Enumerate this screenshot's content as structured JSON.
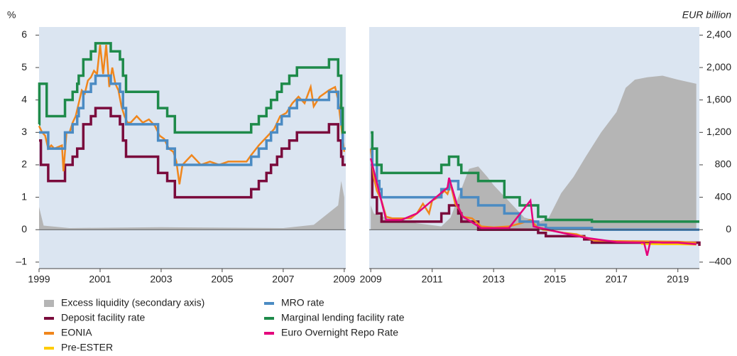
{
  "chart_data": {
    "type": "line",
    "ylabel": "%",
    "y2label": "EUR billion",
    "ylim": [
      -1.2,
      6.25
    ],
    "yticks": [
      {
        "value": -1,
        "label": "–1"
      },
      0,
      1,
      2,
      3,
      4,
      5,
      6
    ],
    "y2lim": [
      -480,
      2500
    ],
    "y2ticks": [
      {
        "value": -400,
        "label": "–400"
      },
      0,
      400,
      800,
      {
        "value": 1200,
        "label": "1,200"
      },
      {
        "value": 1600,
        "label": "1,600"
      },
      {
        "value": 2000,
        "label": "2,000"
      },
      {
        "value": 2400,
        "label": "2,400"
      }
    ],
    "panels": [
      {
        "xlim": [
          1999,
          2009.05
        ],
        "xticks": [
          1999,
          2001,
          2003,
          2005,
          2007,
          2009
        ]
      },
      {
        "xlim": [
          2008.95,
          2019.7
        ],
        "xticks": [
          2009,
          2011,
          2013,
          2015,
          2017,
          2019
        ]
      }
    ],
    "series": [
      {
        "name": "Excess liquidity (secondary axis)",
        "color": "#b5b5b5",
        "axis": "y2",
        "style": "area",
        "data": [
          {
            "x": [
              1999,
              1999.15,
              2000,
              2003,
              2007,
              2008,
              2008.8,
              2008.9,
              2009.0
            ],
            "values": [
              280,
              50,
              20,
              30,
              20,
              60,
              300,
              600,
              400
            ]
          },
          {
            "x": [
              2009,
              2009.1,
              2009.5,
              2010,
              2010.5,
              2010.9,
              2011.3,
              2011.6,
              2011.9,
              2012.2,
              2012.5,
              2012.8,
              2013.0,
              2013.5,
              2014.0,
              2014.5,
              2014.8,
              2015.2,
              2015.6,
              2016.0,
              2016.5,
              2017.0,
              2017.3,
              2017.6,
              2018.0,
              2018.5,
              2019.0,
              2019.6
            ],
            "values": [
              300,
              200,
              150,
              130,
              80,
              60,
              40,
              150,
              450,
              750,
              780,
              650,
              550,
              350,
              150,
              100,
              150,
              450,
              650,
              900,
              1200,
              1450,
              1750,
              1850,
              1880,
              1900,
              1850,
              1800
            ]
          }
        ]
      },
      {
        "name": "Deposit facility rate",
        "color": "#7a0b3c",
        "style": "steps",
        "data": [
          {
            "x": [
              1999,
              1999.06,
              1999.3,
              1999.85,
              2000.1,
              2000.25,
              2000.45,
              2000.7,
              2000.85,
              2001.35,
              2001.65,
              2001.75,
              2001.85,
              2002.9,
              2003.2,
              2003.45,
              2005.95,
              2006.2,
              2006.45,
              2006.6,
              2006.8,
              2006.95,
              2007.2,
              2007.45,
              2008.5,
              2008.8,
              2008.9,
              2008.95
            ],
            "values": [
              2.75,
              2.0,
              1.5,
              2.0,
              2.25,
              2.5,
              3.25,
              3.5,
              3.75,
              3.5,
              3.25,
              2.75,
              2.25,
              1.75,
              1.5,
              1.0,
              1.25,
              1.5,
              1.75,
              2.0,
              2.25,
              2.5,
              2.75,
              3.0,
              3.25,
              2.75,
              2.25,
              2.0
            ]
          },
          {
            "x": [
              2009,
              2009.05,
              2009.2,
              2009.35,
              2011.3,
              2011.55,
              2011.85,
              2011.95,
              2012.5,
              2014.45,
              2014.7,
              2015.95,
              2016.2,
              2019.7
            ],
            "values": [
              2.0,
              1.0,
              0.5,
              0.25,
              0.5,
              0.75,
              0.5,
              0.25,
              0,
              -0.1,
              -0.2,
              -0.3,
              -0.4,
              -0.5
            ]
          }
        ]
      },
      {
        "name": "EONIA",
        "color": "#f0861c",
        "style": "line",
        "data": [
          {
            "x": [
              1999,
              1999.1,
              1999.2,
              1999.3,
              1999.4,
              1999.5,
              1999.75,
              1999.8,
              1999.9,
              2000.0,
              2000.1,
              2000.2,
              2000.3,
              2000.4,
              2000.5,
              2000.6,
              2000.7,
              2000.8,
              2000.9,
              2001.0,
              2001.1,
              2001.2,
              2001.3,
              2001.4,
              2001.5,
              2001.6,
              2001.7,
              2001.8,
              2001.9,
              2002.0,
              2002.2,
              2002.4,
              2002.6,
              2002.8,
              2002.95,
              2003.1,
              2003.25,
              2003.4,
              2003.5,
              2003.6,
              2003.7,
              2004.0,
              2004.3,
              2004.6,
              2004.9,
              2005.2,
              2005.5,
              2005.8,
              2005.95,
              2006.2,
              2006.5,
              2006.7,
              2006.9,
              2007.1,
              2007.3,
              2007.5,
              2007.7,
              2007.9,
              2008.0,
              2008.2,
              2008.5,
              2008.7,
              2008.8,
              2008.9,
              2009.0
            ],
            "values": [
              3.2,
              3.0,
              2.9,
              2.5,
              2.6,
              2.5,
              2.6,
              1.8,
              3.0,
              3.0,
              3.3,
              3.5,
              3.9,
              4.3,
              4.2,
              4.6,
              4.7,
              4.9,
              4.8,
              5.7,
              4.8,
              5.7,
              4.4,
              5.0,
              4.5,
              4.3,
              3.8,
              3.5,
              3.3,
              3.3,
              3.5,
              3.3,
              3.4,
              3.2,
              2.9,
              2.8,
              2.5,
              2.4,
              2.1,
              1.4,
              2.0,
              2.3,
              2.0,
              2.1,
              2.0,
              2.1,
              2.1,
              2.1,
              2.3,
              2.6,
              2.9,
              3.1,
              3.5,
              3.6,
              3.9,
              4.1,
              3.9,
              4.4,
              3.8,
              4.1,
              4.3,
              4.4,
              4.0,
              3.2,
              2.4
            ]
          },
          {
            "x": [
              2009.0,
              2009.1,
              2009.2,
              2009.35,
              2009.5,
              2009.7,
              2010.0,
              2010.3,
              2010.5,
              2010.7,
              2010.9,
              2011.0,
              2011.2,
              2011.4,
              2011.5,
              2011.6,
              2011.75,
              2011.9,
              2012.0,
              2012.3,
              2012.6,
              2013.0,
              2013.5,
              2013.9,
              2014.2,
              2014.4,
              2014.6,
              2014.9,
              2015.3,
              2015.7,
              2016.0,
              2016.3,
              2017.0,
              2018.0,
              2019.0,
              2019.6
            ],
            "values": [
              2.5,
              1.6,
              1.2,
              0.9,
              0.4,
              0.35,
              0.35,
              0.35,
              0.5,
              0.8,
              0.5,
              0.9,
              1.0,
              1.2,
              1.1,
              1.4,
              0.8,
              0.6,
              0.4,
              0.35,
              0.1,
              0.07,
              0.1,
              0.2,
              0.3,
              0.1,
              0.0,
              -0.03,
              -0.1,
              -0.14,
              -0.24,
              -0.34,
              -0.35,
              -0.36,
              -0.37,
              -0.4
            ]
          }
        ]
      },
      {
        "name": "Pre-ESTER",
        "color": "#ffcc00",
        "style": "line",
        "data": [
          {
            "x": [],
            "values": []
          },
          {
            "x": [
              2017.8,
              2018.5,
              2019.0,
              2019.6
            ],
            "values": [
              -0.44,
              -0.45,
              -0.45,
              -0.46
            ]
          }
        ]
      },
      {
        "name": "MRO rate",
        "color": "#4b8bc3",
        "style": "steps",
        "data": [
          {
            "x": [
              1999,
              1999.3,
              1999.85,
              2000.1,
              2000.25,
              2000.3,
              2000.45,
              2000.7,
              2000.85,
              2001.35,
              2001.65,
              2001.75,
              2001.85,
              2002.9,
              2003.2,
              2003.45,
              2005.95,
              2006.2,
              2006.45,
              2006.6,
              2006.8,
              2006.95,
              2007.2,
              2007.45,
              2008.5,
              2008.8,
              2008.9,
              2008.95
            ],
            "values": [
              3.0,
              2.5,
              3.0,
              3.25,
              3.5,
              3.75,
              4.25,
              4.5,
              4.75,
              4.5,
              4.25,
              3.75,
              3.25,
              2.75,
              2.5,
              2.0,
              2.25,
              2.5,
              2.75,
              3.0,
              3.25,
              3.5,
              3.75,
              4.0,
              4.25,
              3.75,
              3.25,
              2.5
            ]
          },
          {
            "x": [
              2009,
              2009.05,
              2009.2,
              2009.28,
              2009.35,
              2011.3,
              2011.55,
              2011.85,
              2011.95,
              2012.5,
              2013.35,
              2013.85,
              2014.45,
              2014.7,
              2016.2
            ],
            "values": [
              2.5,
              2.0,
              1.5,
              1.25,
              1.0,
              1.25,
              1.5,
              1.25,
              1.0,
              0.75,
              0.5,
              0.25,
              0.15,
              0.05,
              0
            ]
          }
        ]
      },
      {
        "name": "Marginal lending facility rate",
        "color": "#1e8a4a",
        "style": "steps",
        "data": [
          {
            "x": [
              1999,
              1999.01,
              1999.06,
              1999.25,
              1999.85,
              2000.1,
              2000.25,
              2000.3,
              2000.45,
              2000.7,
              2000.85,
              2001.35,
              2001.65,
              2001.75,
              2001.85,
              2002.9,
              2003.2,
              2003.45,
              2005.95,
              2006.2,
              2006.45,
              2006.6,
              2006.8,
              2006.95,
              2007.2,
              2007.45,
              2008.5,
              2008.8,
              2008.9,
              2008.95
            ],
            "values": [
              3.25,
              4.5,
              4.5,
              3.5,
              4.0,
              4.25,
              4.5,
              4.75,
              5.25,
              5.5,
              5.75,
              5.5,
              5.25,
              4.75,
              4.25,
              3.75,
              3.5,
              3.0,
              3.25,
              3.5,
              3.75,
              4.0,
              4.25,
              4.5,
              4.75,
              5.0,
              5.25,
              4.75,
              3.75,
              3.0
            ]
          },
          {
            "x": [
              2009,
              2009.05,
              2009.2,
              2009.35,
              2011.3,
              2011.55,
              2011.85,
              2011.95,
              2012.5,
              2013.35,
              2013.85,
              2014.45,
              2014.7,
              2016.2
            ],
            "values": [
              3.0,
              2.5,
              2.0,
              1.75,
              2.0,
              2.25,
              2.0,
              1.75,
              1.5,
              1.0,
              0.75,
              0.4,
              0.3,
              0.25
            ]
          }
        ]
      },
      {
        "name": "Euro Overnight Repo Rate",
        "color": "#e4007c",
        "style": "line",
        "data": [
          {
            "x": [],
            "values": []
          },
          {
            "x": [
              2009.0,
              2009.5,
              2010.0,
              2010.5,
              2011.0,
              2011.5,
              2011.55,
              2011.8,
              2012.0,
              2012.6,
              2013.5,
              2014.2,
              2014.3,
              2015.0,
              2016.0,
              2017.0,
              2017.9,
              2018.0,
              2018.1,
              2018.5,
              2019.0,
              2019.6
            ],
            "values": [
              2.2,
              0.3,
              0.3,
              0.5,
              0.9,
              1.3,
              1.6,
              0.8,
              0.4,
              0.05,
              0.05,
              0.9,
              0.1,
              -0.05,
              -0.25,
              -0.38,
              -0.4,
              -0.8,
              -0.38,
              -0.4,
              -0.4,
              -0.45
            ]
          }
        ]
      }
    ]
  }
}
